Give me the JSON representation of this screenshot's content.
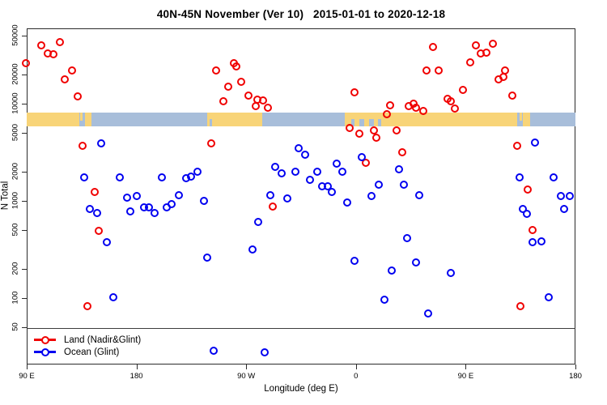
{
  "chart_data": {
    "type": "scatter",
    "title": "40N-45N November (Ver 10)   2015-01-01 to 2020-12-18",
    "xlabel": "Longitude (deg E)",
    "ylabel": "N Total",
    "x_axis": {
      "range_deg": [
        90,
        540
      ],
      "ticks": [
        {
          "lon": 90,
          "label": "90 E"
        },
        {
          "lon": 180,
          "label": "180"
        },
        {
          "lon": 270,
          "label": "90 W"
        },
        {
          "lon": 360,
          "label": "0"
        },
        {
          "lon": 450,
          "label": "90 E"
        },
        {
          "lon": 540,
          "label": "180"
        }
      ]
    },
    "y_axis": {
      "scale": "log",
      "range": [
        21,
        60000
      ],
      "ticks": [
        {
          "value": 50,
          "label": "50"
        },
        {
          "value": 100,
          "label": "100"
        },
        {
          "value": 200,
          "label": "200"
        },
        {
          "value": 500,
          "label": "500"
        },
        {
          "value": 1000,
          "label": "1000"
        },
        {
          "value": 2000,
          "label": "2000"
        },
        {
          "value": 5000,
          "label": "5000"
        },
        {
          "value": 10000,
          "label": "10000"
        },
        {
          "value": 20000,
          "label": "20000"
        },
        {
          "value": 50000,
          "label": "50000"
        }
      ]
    },
    "reference_line": {
      "value": 50,
      "color": "#3d3d3d"
    },
    "map_band": {
      "y_range": [
        5900,
        8100
      ],
      "land_color": "#f8d478",
      "ocean_color": "#a8beda",
      "segments": [
        {
          "from": 90,
          "to": 133,
          "type": "land"
        },
        {
          "from": 133,
          "to": 138,
          "type": "ocean"
        },
        {
          "from": 138,
          "to": 143,
          "type": "land"
        },
        {
          "from": 143,
          "to": 238,
          "type": "ocean"
        },
        {
          "from": 238,
          "to": 283,
          "type": "land"
        },
        {
          "from": 283,
          "to": 351,
          "type": "ocean"
        },
        {
          "from": 351,
          "to": 492,
          "type": "land"
        },
        {
          "from": 492,
          "to": 497,
          "type": "ocean"
        },
        {
          "from": 497,
          "to": 503,
          "type": "land"
        },
        {
          "from": 503,
          "to": 540,
          "type": "ocean"
        }
      ],
      "patches": [
        {
          "from": 134,
          "to": 136,
          "type": "land",
          "half": "top"
        },
        {
          "from": 240,
          "to": 242,
          "type": "ocean",
          "half": "bottom"
        },
        {
          "from": 356,
          "to": 359,
          "type": "ocean",
          "half": "bottom"
        },
        {
          "from": 363,
          "to": 367,
          "type": "ocean",
          "half": "bottom"
        },
        {
          "from": 371,
          "to": 375,
          "type": "ocean",
          "half": "bottom"
        },
        {
          "from": 378,
          "to": 381,
          "type": "ocean",
          "half": "bottom"
        },
        {
          "from": 494.5,
          "to": 496.5,
          "type": "land",
          "half": "top"
        }
      ]
    },
    "series": [
      {
        "name": "Land (Nadir&Glint)",
        "color": "#f00000",
        "points": [
          [
            102,
            40000
          ],
          [
            117,
            43000
          ],
          [
            107,
            33000
          ],
          [
            112,
            32500
          ],
          [
            89,
            26500
          ],
          [
            127,
            22000
          ],
          [
            121,
            18000
          ],
          [
            132,
            12000
          ],
          [
            136,
            3700
          ],
          [
            146,
            1260
          ],
          [
            149,
            500
          ],
          [
            140,
            84
          ],
          [
            260,
            26500
          ],
          [
            262,
            24200
          ],
          [
            245,
            22000
          ],
          [
            266,
            17100
          ],
          [
            255,
            15200
          ],
          [
            272,
            12300
          ],
          [
            251,
            10600
          ],
          [
            279,
            11200
          ],
          [
            284,
            10800
          ],
          [
            278,
            9600
          ],
          [
            288,
            9100
          ],
          [
            241,
            3970
          ],
          [
            292,
            890
          ],
          [
            423,
            39000
          ],
          [
            418,
            22000
          ],
          [
            428,
            22000
          ],
          [
            359,
            13300
          ],
          [
            388,
            9800
          ],
          [
            385,
            7800
          ],
          [
            403,
            9600
          ],
          [
            407,
            10000
          ],
          [
            409,
            9200
          ],
          [
            415,
            8500
          ],
          [
            435,
            11400
          ],
          [
            438,
            10600
          ],
          [
            441,
            9000
          ],
          [
            355,
            5700
          ],
          [
            363,
            5000
          ],
          [
            375,
            5400
          ],
          [
            377,
            4500
          ],
          [
            393,
            5400
          ],
          [
            398,
            3200
          ],
          [
            368,
            2500
          ],
          [
            458,
            40000
          ],
          [
            472,
            42000
          ],
          [
            462,
            33000
          ],
          [
            467,
            34000
          ],
          [
            454,
            27000
          ],
          [
            482,
            22000
          ],
          [
            477,
            18000
          ],
          [
            481,
            19000
          ],
          [
            448,
            14000
          ],
          [
            488,
            12300
          ],
          [
            492,
            3700
          ],
          [
            501,
            1330
          ],
          [
            505,
            510
          ],
          [
            495,
            84
          ]
        ]
      },
      {
        "name": "Ocean (Glint)",
        "color": "#0000f0",
        "points": [
          [
            151,
            3970
          ],
          [
            137,
            1770
          ],
          [
            166,
            1770
          ],
          [
            201,
            1770
          ],
          [
            172,
            1100
          ],
          [
            180,
            1140
          ],
          [
            142,
            840
          ],
          [
            148,
            760
          ],
          [
            175,
            790
          ],
          [
            186,
            870
          ],
          [
            190,
            870
          ],
          [
            195,
            760
          ],
          [
            205,
            870
          ],
          [
            209,
            930
          ],
          [
            156,
            380
          ],
          [
            161,
            104
          ],
          [
            313,
            3500
          ],
          [
            318,
            3000
          ],
          [
            294,
            2280
          ],
          [
            299,
            1950
          ],
          [
            310,
            2000
          ],
          [
            322,
            1650
          ],
          [
            230,
            2030
          ],
          [
            221,
            1740
          ],
          [
            225,
            1810
          ],
          [
            215,
            1160
          ],
          [
            235,
            1020
          ],
          [
            290,
            1160
          ],
          [
            304,
            1080
          ],
          [
            280,
            620
          ],
          [
            275,
            320
          ],
          [
            238,
            265
          ],
          [
            243,
            29
          ],
          [
            285,
            28
          ],
          [
            328,
            2030
          ],
          [
            344,
            2460
          ],
          [
            349,
            2000
          ],
          [
            332,
            1440
          ],
          [
            337,
            1420
          ],
          [
            340,
            1260
          ],
          [
            353,
            980
          ],
          [
            365,
            2870
          ],
          [
            373,
            1140
          ],
          [
            379,
            1470
          ],
          [
            399,
            1490
          ],
          [
            395,
            2120
          ],
          [
            412,
            1160
          ],
          [
            402,
            420
          ],
          [
            359,
            246
          ],
          [
            389,
            195
          ],
          [
            409,
            236
          ],
          [
            438,
            185
          ],
          [
            383,
            98
          ],
          [
            419,
            71
          ],
          [
            507,
            4050
          ],
          [
            494,
            1770
          ],
          [
            522,
            1770
          ],
          [
            528,
            1140
          ],
          [
            535,
            1140
          ],
          [
            531,
            840
          ],
          [
            497,
            840
          ],
          [
            500,
            750
          ],
          [
            505,
            380
          ],
          [
            512,
            385
          ],
          [
            518,
            104
          ]
        ]
      }
    ],
    "legend_position": "bottom-left"
  }
}
